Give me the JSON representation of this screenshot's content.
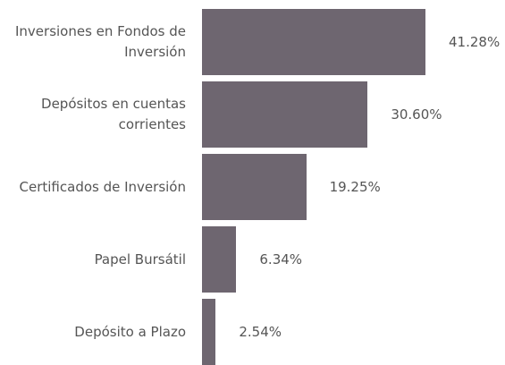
{
  "chart_data": {
    "type": "bar",
    "orientation": "horizontal",
    "categories": [
      "Inversiones en Fondos de Inversión",
      "Depósitos en cuentas corrientes",
      "Certificados de Inversión",
      "Papel Bursátil",
      "Depósito a Plazo"
    ],
    "values": [
      41.28,
      30.6,
      19.25,
      6.34,
      2.54
    ],
    "value_labels": [
      "41.28%",
      "30.60%",
      "19.25%",
      "6.34%",
      "2.54%"
    ],
    "color": "#6e6670"
  }
}
